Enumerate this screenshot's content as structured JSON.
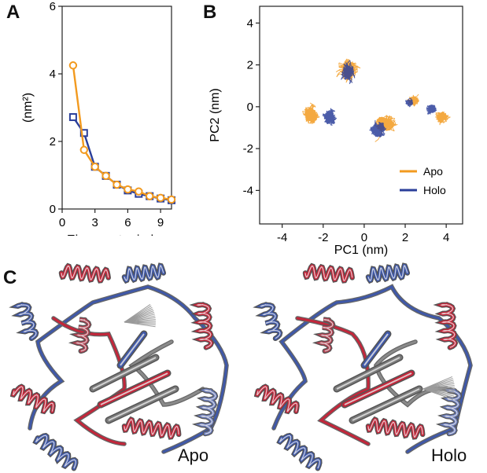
{
  "panel_labels": {
    "a": "A",
    "b": "B",
    "c": "C"
  },
  "colors": {
    "apo": "#f29a1f",
    "holo": "#2b3f9a",
    "axis": "#222222",
    "ribbon_red": "#c3263a",
    "ribbon_blue": "#3f58a8",
    "ribbon_gray": "#8a8a8a"
  },
  "chart_data": [
    {
      "type": "line",
      "panel": "A",
      "xlabel": "Eigenvector index",
      "ylabel": "(nm²)",
      "xlim": [
        0,
        10
      ],
      "ylim": [
        0,
        6
      ],
      "x_ticks": [
        0,
        3,
        6,
        9
      ],
      "y_ticks": [
        0,
        2,
        4,
        6
      ],
      "grid": false,
      "series": [
        {
          "name": "Apo",
          "marker": "circle",
          "x": [
            1,
            2,
            3,
            4,
            5,
            6,
            7,
            8,
            9,
            10
          ],
          "y": [
            4.25,
            1.75,
            1.25,
            0.98,
            0.72,
            0.58,
            0.52,
            0.38,
            0.33,
            0.28
          ]
        },
        {
          "name": "Holo",
          "marker": "square",
          "x": [
            1,
            2,
            3,
            4,
            5,
            6,
            7,
            8,
            9,
            10
          ],
          "y": [
            2.72,
            2.25,
            1.25,
            0.98,
            0.72,
            0.55,
            0.45,
            0.38,
            0.31,
            0.26
          ]
        }
      ]
    },
    {
      "type": "scatter",
      "panel": "B",
      "xlabel": "PC1 (nm)",
      "ylabel": "PC2 (nm)",
      "xlim": [
        -5.1,
        4.8
      ],
      "ylim": [
        -5.6,
        4.8
      ],
      "x_ticks": [
        -4,
        -2,
        0,
        2,
        4
      ],
      "y_ticks": [
        -4,
        -2,
        0,
        2,
        4
      ],
      "legend_position": "bottom-right",
      "legend": [
        "Apo",
        "Holo"
      ],
      "series": [
        {
          "name": "Apo",
          "clusters": [
            {
              "cx": -0.8,
              "cy": 1.8,
              "sx": 0.8,
              "sy": 0.95
            },
            {
              "cx": -2.6,
              "cy": -0.4,
              "sx": 0.75,
              "sy": 0.8
            },
            {
              "cx": 1.0,
              "cy": -0.8,
              "sx": 0.9,
              "sy": 0.75
            },
            {
              "cx": 3.8,
              "cy": -0.5,
              "sx": 0.6,
              "sy": 0.5
            },
            {
              "cx": 2.4,
              "cy": 0.3,
              "sx": 0.5,
              "sy": 0.4
            }
          ]
        },
        {
          "name": "Holo",
          "clusters": [
            {
              "cx": -0.8,
              "cy": 1.6,
              "sx": 0.6,
              "sy": 0.8
            },
            {
              "cx": -1.7,
              "cy": -0.5,
              "sx": 0.6,
              "sy": 0.75
            },
            {
              "cx": 0.7,
              "cy": -1.1,
              "sx": 0.7,
              "sy": 0.7
            },
            {
              "cx": 3.3,
              "cy": -0.1,
              "sx": 0.45,
              "sy": 0.45
            },
            {
              "cx": 2.2,
              "cy": 0.2,
              "sx": 0.35,
              "sy": 0.3
            }
          ]
        }
      ]
    }
  ],
  "structures": {
    "apo_label": "Apo",
    "holo_label": "Holo"
  }
}
